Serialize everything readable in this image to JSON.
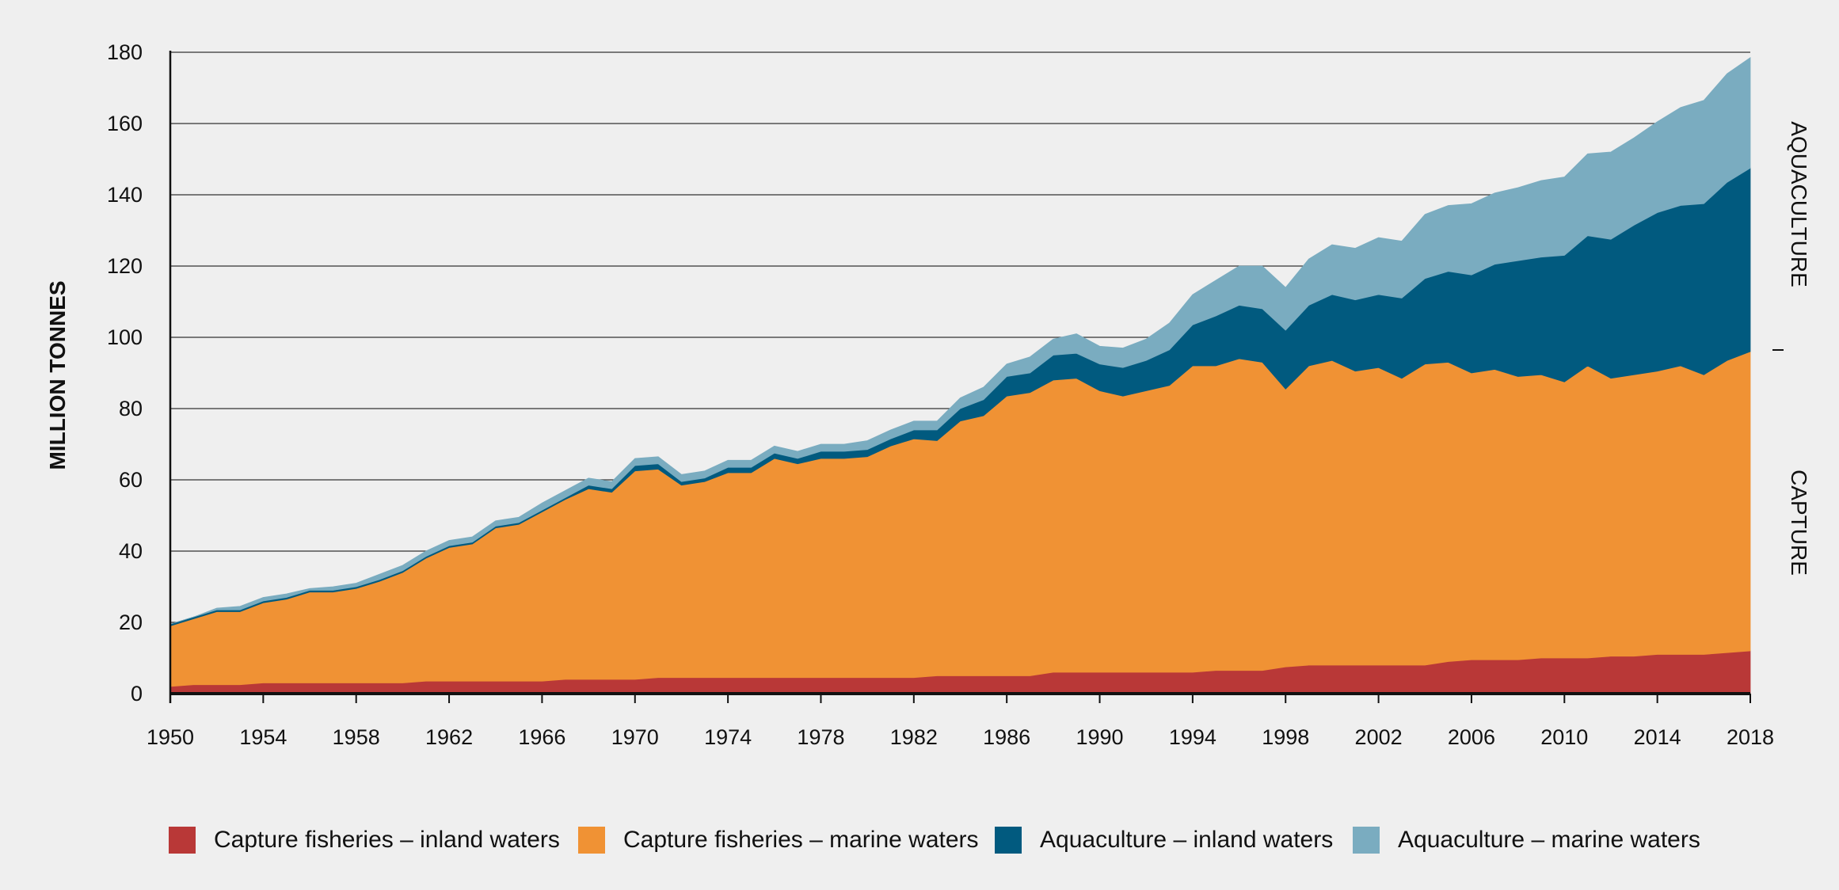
{
  "chart_data": {
    "type": "area",
    "stacked": true,
    "ylabel": "MILLION TONNES",
    "xlabel": "",
    "ylim": [
      0,
      180
    ],
    "xlim": [
      1950,
      2018
    ],
    "yticks": [
      0,
      20,
      40,
      60,
      80,
      100,
      120,
      140,
      160,
      180
    ],
    "xticks": [
      1950,
      1954,
      1958,
      1962,
      1966,
      1970,
      1974,
      1978,
      1982,
      1986,
      1990,
      1994,
      1998,
      2002,
      2006,
      2010,
      2014,
      2018
    ],
    "grid": "horizontal",
    "legend_position": "bottom",
    "side_labels": {
      "upper": "AQUACULTURE",
      "lower": "CAPTURE"
    },
    "x": [
      1950,
      1951,
      1952,
      1953,
      1954,
      1955,
      1956,
      1957,
      1958,
      1959,
      1960,
      1961,
      1962,
      1963,
      1964,
      1965,
      1966,
      1967,
      1968,
      1969,
      1970,
      1971,
      1972,
      1973,
      1974,
      1975,
      1976,
      1977,
      1978,
      1979,
      1980,
      1981,
      1982,
      1983,
      1984,
      1985,
      1986,
      1987,
      1988,
      1989,
      1990,
      1991,
      1992,
      1993,
      1994,
      1995,
      1996,
      1997,
      1998,
      1999,
      2000,
      2001,
      2002,
      2003,
      2004,
      2005,
      2006,
      2007,
      2008,
      2009,
      2010,
      2011,
      2012,
      2013,
      2014,
      2015,
      2016,
      2017,
      2018
    ],
    "series": [
      {
        "name": "Capture fisheries – inland waters",
        "color": "#b93837",
        "values": [
          2,
          2.5,
          2.5,
          2.5,
          3,
          3,
          3,
          3,
          3,
          3,
          3,
          3.5,
          3.5,
          3.5,
          3.5,
          3.5,
          3.5,
          4,
          4,
          4,
          4,
          4.5,
          4.5,
          4.5,
          4.5,
          4.5,
          4.5,
          4.5,
          4.5,
          4.5,
          4.5,
          4.5,
          4.5,
          5,
          5,
          5,
          5,
          5,
          6,
          6,
          6,
          6,
          6,
          6,
          6,
          6.5,
          6.5,
          6.5,
          7.5,
          8,
          8,
          8,
          8,
          8,
          8,
          9,
          9.5,
          9.5,
          9.5,
          10,
          10,
          10,
          10.5,
          10.5,
          11,
          11,
          11,
          11.5,
          12
        ]
      },
      {
        "name": "Capture fisheries – marine waters",
        "color": "#f09234",
        "values": [
          17,
          18.5,
          20.5,
          20.5,
          22.5,
          23.5,
          25.5,
          25.5,
          26.5,
          28.5,
          31,
          34.5,
          37.5,
          38.5,
          43,
          44,
          47.5,
          50.5,
          53.5,
          52.5,
          58.5,
          58.5,
          54,
          55,
          57.5,
          57.5,
          61.5,
          60,
          61.5,
          61.5,
          62,
          65,
          67,
          66,
          71.5,
          73,
          78.5,
          79.5,
          82,
          82.5,
          79,
          77.5,
          79,
          80.5,
          86,
          85.5,
          87.5,
          86.5,
          78,
          84,
          85.5,
          82.5,
          83.5,
          80.5,
          84.5,
          84,
          80.5,
          81.5,
          79.5,
          79.5,
          77.5,
          82,
          78,
          79,
          79.5,
          81,
          78.5,
          82,
          84
        ]
      },
      {
        "name": "Aquaculture – inland waters",
        "color": "#015a7f",
        "values": [
          0.5,
          0.5,
          0.5,
          0.5,
          0.5,
          0.5,
          0.5,
          0.5,
          0.5,
          0.5,
          0.5,
          0.5,
          0.5,
          0.5,
          0.5,
          0.5,
          0.5,
          0.5,
          1,
          1,
          1.5,
          1.5,
          1,
          1,
          1.5,
          1.5,
          1.5,
          1.5,
          2,
          2,
          2,
          2,
          2.5,
          3,
          3.5,
          4.5,
          5.5,
          5.5,
          7,
          7,
          7.5,
          8,
          8.5,
          10,
          11.5,
          14,
          15,
          15,
          16.5,
          17,
          18.5,
          20,
          20.5,
          22.5,
          24,
          25.5,
          27.5,
          29.5,
          32.5,
          33,
          35.5,
          36.5,
          39,
          42,
          44.5,
          45,
          48,
          50,
          51.5
        ]
      },
      {
        "name": "Aquaculture – marine waters",
        "color": "#7aacc0",
        "values": [
          0,
          0,
          0.5,
          1,
          1,
          1,
          0.5,
          1,
          1,
          1.5,
          1.5,
          1.5,
          1.5,
          1.5,
          1.5,
          1.5,
          2,
          2,
          2,
          2,
          2,
          2,
          2,
          2,
          2,
          2,
          2,
          2,
          2,
          2,
          2.5,
          2.5,
          2.5,
          2.5,
          3,
          3.5,
          3.5,
          4.5,
          4.5,
          5.5,
          5,
          5.5,
          6,
          7.5,
          8.5,
          10,
          11,
          12,
          12,
          13,
          14,
          14.5,
          16,
          16,
          18,
          18.5,
          20,
          20,
          20.5,
          21.5,
          22,
          23,
          24.5,
          24.5,
          25.5,
          27.5,
          29,
          30.5,
          31
        ]
      }
    ]
  }
}
